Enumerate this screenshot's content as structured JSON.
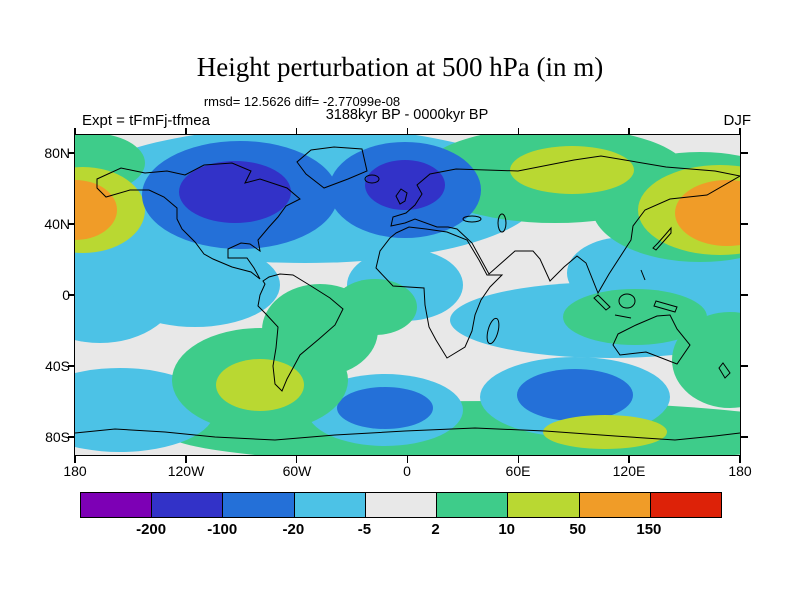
{
  "header": {
    "title": "Height perturbation at 500 hPa (in m)",
    "stats_line": "rmsd= 12.5626 diff= -2.77099e-08",
    "period_line": "3188kyr BP - 0000kyr BP",
    "experiment_label": "Expt = tFmFj-tfmea",
    "season_label": "DJF"
  },
  "axes": {
    "y_ticks": [
      "80N",
      "40N",
      "0",
      "40S",
      "80S"
    ],
    "x_ticks": [
      "180",
      "120W",
      "60W",
      "0",
      "60E",
      "120E",
      "180"
    ]
  },
  "colorbar": {
    "labels": [
      "-200",
      "-100",
      "-20",
      "-5",
      "2",
      "10",
      "50",
      "150"
    ],
    "colors": [
      "#7d00b5",
      "#3232c8",
      "#2470d8",
      "#4cc2e6",
      "#e8e8e8",
      "#3ecc8a",
      "#b9d832",
      "#f09c28",
      "#dd2208"
    ]
  },
  "chart_data": {
    "type": "heatmap",
    "title": "Height perturbation at 500 hPa (in m)",
    "variable": "height perturbation at 500 hPa",
    "units": "m",
    "season": "DJF",
    "experiment": "Expt = tFmFj-tfmea",
    "difference_of": "3188kyr BP - 0000kyr BP",
    "rmsd": 12.5626,
    "diff": -2.77099e-08,
    "projection": "global cylindrical world map with coastlines",
    "lon_range": [
      -180,
      180
    ],
    "lat_range": [
      -90,
      90
    ],
    "x_tick_labels": [
      "180",
      "120W",
      "60W",
      "0",
      "60E",
      "120E",
      "180"
    ],
    "y_tick_labels": [
      "80N",
      "40N",
      "0",
      "40S",
      "80S"
    ],
    "contour_levels": [
      -200,
      -100,
      -20,
      -5,
      2,
      10,
      50,
      150
    ],
    "palette": [
      "#7d00b5",
      "#3232c8",
      "#2470d8",
      "#4cc2e6",
      "#e8e8e8",
      "#3ecc8a",
      "#b9d832",
      "#f09c28",
      "#dd2208"
    ],
    "legend_position": "horizontal colorbar below map",
    "grid": false,
    "anomaly_regions": [
      {
        "region": "North Pacific near date line ~45N (wraps map edges)",
        "value_range": "50 to 150"
      },
      {
        "region": "Northern North America / Canada",
        "value_range": "-200 to -20"
      },
      {
        "region": "North Atlantic / Northern Europe",
        "value_range": "-200 to -20"
      },
      {
        "region": "Siberia band",
        "value_range": "2 to 50"
      },
      {
        "region": "Northeast Asia ~45N near right edge",
        "value_range": "50 to 150"
      },
      {
        "region": "Subtropical North Pacific and tropical belts",
        "value_range": "-20 to -5"
      },
      {
        "region": "Central South Pacific",
        "value_range": "2 to 50"
      },
      {
        "region": "South Atlantic ~55S core",
        "value_range": "-100 to -20"
      },
      {
        "region": "South Indian Ocean ~55S core",
        "value_range": "-100 to -20"
      },
      {
        "region": "Southern Ocean band ~65S",
        "value_range": "2 to 10"
      },
      {
        "region": "Subtropics / continents (gray areas)",
        "value_range": "-5 to 2"
      }
    ]
  }
}
